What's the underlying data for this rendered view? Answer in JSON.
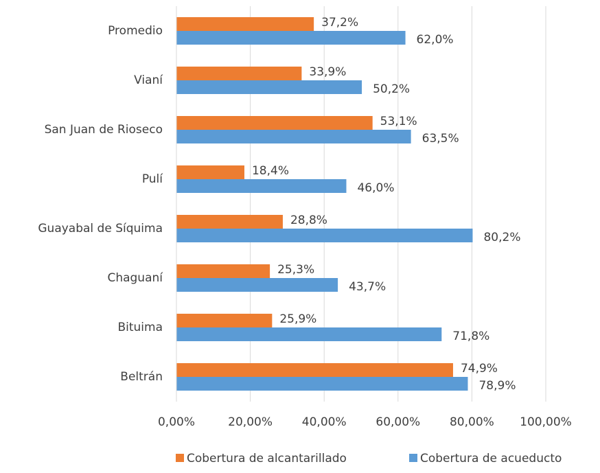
{
  "chart_data": {
    "type": "bar",
    "orientation": "horizontal",
    "categories": [
      "Promedio",
      "Vianí",
      "San Juan de Rioseco",
      "Pulí",
      "Guayabal de Síquima",
      "Chaguaní",
      "Bituima",
      "Beltrán"
    ],
    "series": [
      {
        "name": "Cobertura de alcantarillado",
        "color": "#ED7D31",
        "values": [
          37.2,
          33.9,
          53.1,
          18.4,
          28.8,
          25.3,
          25.9,
          74.9
        ],
        "value_labels": [
          "37,2%",
          "33,9%",
          "53,1%",
          "18,4%",
          "28,8%",
          "25,3%",
          "25,9%",
          "74,9%"
        ]
      },
      {
        "name": "Cobertura de acueducto",
        "color": "#5B9BD5",
        "values": [
          62.0,
          50.2,
          63.5,
          46.0,
          80.2,
          43.7,
          71.8,
          78.9
        ],
        "value_labels": [
          "62,0%",
          "50,2%",
          "63,5%",
          "46,0%",
          "80,2%",
          "43,7%",
          "71,8%",
          "78,9%"
        ]
      }
    ],
    "xlim": [
      0,
      100
    ],
    "xticks": [
      {
        "value": 0,
        "label": "0,00%"
      },
      {
        "value": 20,
        "label": "20,00%"
      },
      {
        "value": 40,
        "label": "40,00%"
      },
      {
        "value": 60,
        "label": "60,00%"
      },
      {
        "value": 80,
        "label": "80,00%"
      },
      {
        "value": 100,
        "label": "100,00%"
      }
    ],
    "grid": true,
    "legend": "bottom"
  }
}
